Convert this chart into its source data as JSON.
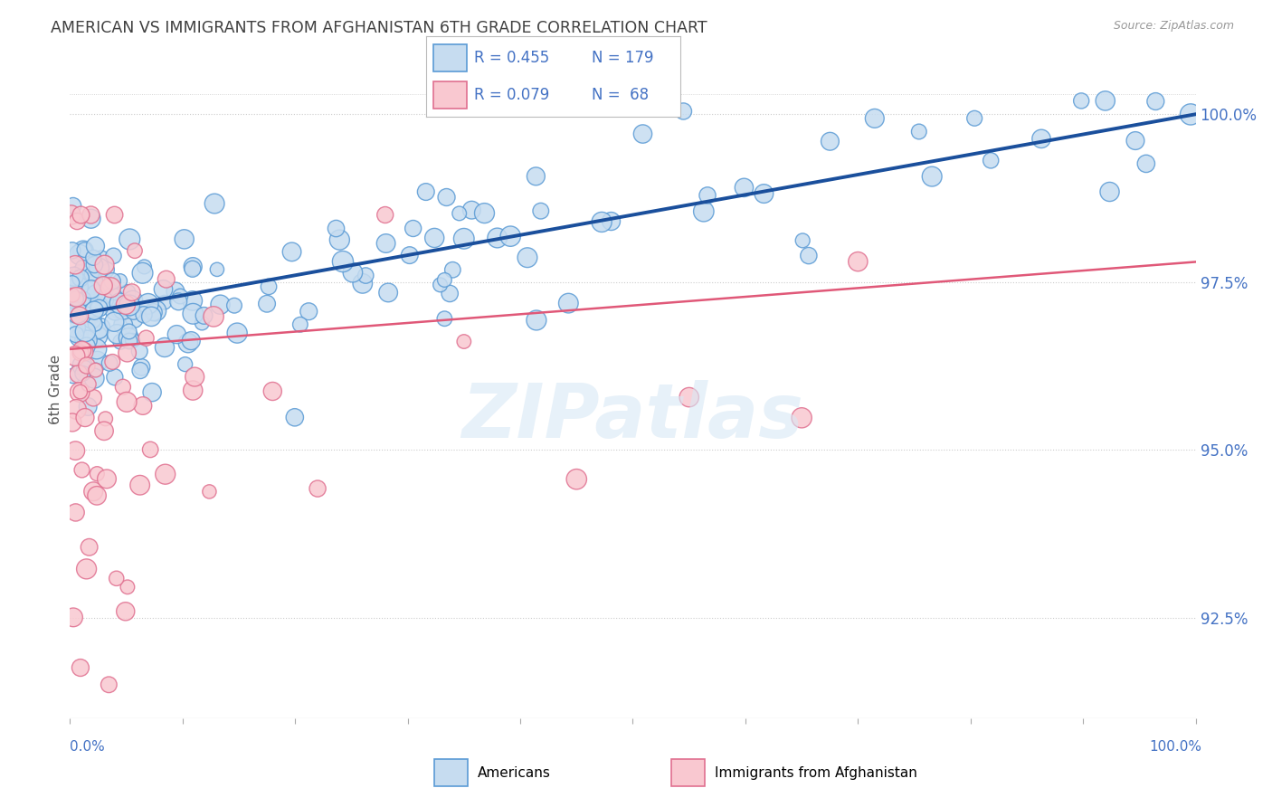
{
  "title": "AMERICAN VS IMMIGRANTS FROM AFGHANISTAN 6TH GRADE CORRELATION CHART",
  "source": "Source: ZipAtlas.com",
  "ylabel": "6th Grade",
  "ytick_labels_right": [
    "92.5%",
    "95.0%",
    "97.5%",
    "100.0%"
  ],
  "ytick_right_vals": [
    92.5,
    95.0,
    97.5,
    100.0
  ],
  "xmin": 0.0,
  "xmax": 100.0,
  "ymin": 91.0,
  "ymax": 100.8,
  "legend_r1": "R = 0.455",
  "legend_n1": "N = 179",
  "legend_r2": "R = 0.079",
  "legend_n2": "N =  68",
  "watermark": "ZIPatlas",
  "blue_scatter_face": "#c6dcf0",
  "blue_scatter_edge": "#5b9bd5",
  "pink_scatter_face": "#f9c8d0",
  "pink_scatter_edge": "#e07090",
  "line_blue_color": "#1a4f9c",
  "line_pink_color": "#e05878",
  "title_color": "#404040",
  "axis_label_color": "#4472c4",
  "right_tick_color": "#4472c4",
  "grid_color": "#cccccc",
  "background_color": "#ffffff",
  "blue_line_start_y": 97.0,
  "blue_line_end_y": 100.0,
  "pink_line_start_y": 96.5,
  "pink_line_end_y": 97.8
}
